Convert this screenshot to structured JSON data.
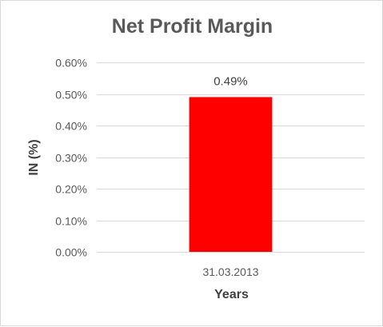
{
  "chart_data": {
    "type": "bar",
    "title": "Net Profit Margin",
    "xlabel": "Years",
    "ylabel": "IN (%)",
    "categories": [
      "31.03.2013"
    ],
    "values": [
      0.49
    ],
    "value_labels": [
      "0.49%"
    ],
    "ylim": [
      0,
      0.6
    ],
    "yticks": [
      0,
      0.1,
      0.2,
      0.3,
      0.4,
      0.5,
      0.6
    ],
    "ytick_labels": [
      "0.00%",
      "0.10%",
      "0.20%",
      "0.30%",
      "0.40%",
      "0.50%",
      "0.60%"
    ],
    "bar_color": "#ff0000",
    "grid": true,
    "legend": "none"
  }
}
